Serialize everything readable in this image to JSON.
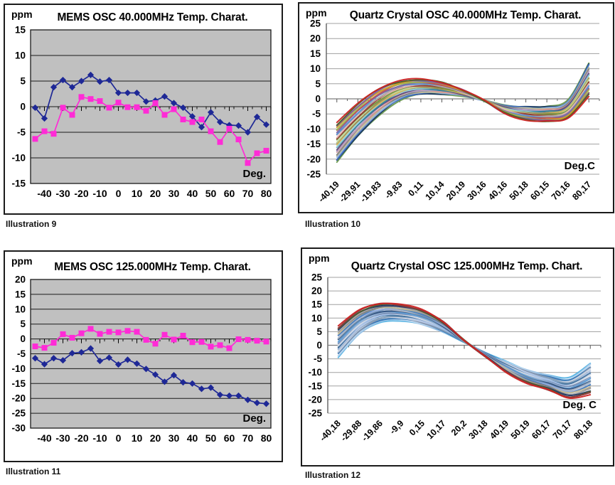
{
  "chart_data": [
    {
      "id": "mems-40",
      "type": "line",
      "title": "MEMS OSC 40.000MHz Temp. Charat.",
      "ylabel": "ppm",
      "xlabel": "Deg.",
      "caption": "Illustration 9",
      "ylim": [
        -15,
        15
      ],
      "ytick_step": 5,
      "grid": true,
      "plot_bg": "#c0c0c0",
      "x_start": -45,
      "x_step": 5,
      "x_tick_labels": [
        "-40",
        "-30",
        "-20",
        "-10",
        "0",
        "10",
        "20",
        "30",
        "40",
        "50",
        "60",
        "70",
        "80"
      ],
      "series": [
        {
          "name": "series-1",
          "marker": "diamond",
          "color": "#1e2896",
          "values": [
            -0.2,
            -2.3,
            3.8,
            5.2,
            3.8,
            5.0,
            6.2,
            4.9,
            5.2,
            2.7,
            2.7,
            2.7,
            1.0,
            1.2,
            2.0,
            0.7,
            -0.2,
            -1.9,
            -4.0,
            -1.1,
            -3.0,
            -3.6,
            -3.7,
            -5.0,
            -2.0,
            -3.5
          ]
        },
        {
          "name": "series-2",
          "marker": "square",
          "color": "#ff2bd6",
          "values": [
            -6.3,
            -4.8,
            -5.3,
            -0.2,
            -1.6,
            1.9,
            1.5,
            1.1,
            -0.2,
            0.8,
            -0.1,
            -0.1,
            -0.8,
            0.7,
            -1.6,
            -0.5,
            -2.5,
            -3.0,
            -2.5,
            -4.8,
            -6.9,
            -4.3,
            -6.4,
            -11.0,
            -9.1,
            -8.6
          ]
        }
      ]
    },
    {
      "id": "quartz-40",
      "type": "line",
      "title": "Quartz Crystal OSC 40.000MHz Temp. Charat.",
      "ylabel": "ppm",
      "xlabel": "Deg.C",
      "caption": "Illustration 10",
      "ylim": [
        -25,
        25
      ],
      "ytick_step": 5,
      "grid": true,
      "plot_bg": "#ffffff",
      "x_tick_labels": [
        "-40,19",
        "-29,91",
        "-19,83",
        "-9,83",
        "0,11",
        "10,14",
        "20,19",
        "30,16",
        "40,16",
        "50,18",
        "60,15",
        "70,16",
        "80,17"
      ],
      "num_curves": 26,
      "cross_index": 7,
      "curve_band": {
        "max": [
          -8,
          -1.5,
          3.5,
          6,
          6.5,
          5.5,
          3.5,
          0.5,
          -1.5,
          -2.5,
          -2.5,
          -0.5,
          12
        ],
        "min": [
          -21,
          -12.5,
          -5.5,
          -0.5,
          1.5,
          1.5,
          0.5,
          -1.5,
          -5.5,
          -7,
          -7.5,
          -6.5,
          1
        ]
      },
      "palette": [
        "#6a9a4e",
        "#17375e",
        "#4472c4",
        "#8eb4e3",
        "#c4bd96",
        "#7f7f7f",
        "#d99694",
        "#b2a2c7",
        "#604a7b",
        "#31859c",
        "#92cddc",
        "#d6b656",
        "#948a54",
        "#c3d69b",
        "#77933c",
        "#953735",
        "#e6b9b8",
        "#a6a6a6",
        "#558ed5",
        "#8064a2",
        "#c0504d",
        "#9bbb59",
        "#d19e28",
        "#7a5aa5",
        "#4f6228",
        "#cc2222"
      ]
    },
    {
      "id": "mems-125",
      "type": "line",
      "title": "MEMS OSC 125.000MHz Temp. Charat.",
      "ylabel": "ppm",
      "xlabel": "Deg.",
      "caption": "Illustration 11",
      "ylim": [
        -30,
        20
      ],
      "ytick_step": 5,
      "grid": true,
      "plot_bg": "#c0c0c0",
      "x_start": -45,
      "x_step": 5,
      "x_tick_labels": [
        "-40",
        "-30",
        "-20",
        "-10",
        "0",
        "10",
        "20",
        "30",
        "40",
        "50",
        "60",
        "70",
        "80"
      ],
      "series": [
        {
          "name": "series-1",
          "marker": "diamond",
          "color": "#1e2896",
          "values": [
            -6.5,
            -8.5,
            -6.5,
            -7.2,
            -4.8,
            -4.5,
            -3.2,
            -7.4,
            -6.3,
            -8.6,
            -7.0,
            -8.3,
            -10.1,
            -12.0,
            -14.4,
            -12.2,
            -14.6,
            -15.0,
            -16.8,
            -16.4,
            -18.8,
            -19.1,
            -19.1,
            -20.5,
            -21.5,
            -21.8
          ]
        },
        {
          "name": "series-2",
          "marker": "square",
          "color": "#ff2bd6",
          "values": [
            -2.5,
            -3.0,
            -1.3,
            1.6,
            0.4,
            1.9,
            3.4,
            1.7,
            2.4,
            2.2,
            2.7,
            2.4,
            -0.3,
            -1.6,
            1.4,
            -0.2,
            1.1,
            -1.1,
            -1.0,
            -2.6,
            -2.1,
            -3.1,
            -0.1,
            -0.3,
            -0.6,
            -0.9
          ]
        }
      ]
    },
    {
      "id": "quartz-125",
      "type": "line",
      "title": "Quartz Crystal OSC 125.000MHz Temp. Chart.",
      "ylabel": "ppm",
      "xlabel": "Deg. C",
      "caption": "Illustration 12",
      "ylim": [
        -25,
        25
      ],
      "ytick_step": 5,
      "grid": true,
      "plot_bg": "#ffffff",
      "x_tick_labels": [
        "-40,18",
        "-29,88",
        "-19,86",
        "-9,9",
        "0,15",
        "10,17",
        "20,2",
        "30,18",
        "40,19",
        "50,19",
        "60,17",
        "70,17",
        "80,18"
      ],
      "num_curves": 26,
      "cross_index": 6.3,
      "curve_band": {
        "max": [
          7,
          13,
          15.5,
          15,
          13,
          9,
          3,
          -2,
          -6,
          -9,
          -11,
          -12,
          -6.5
        ],
        "min": [
          -4.5,
          4,
          8.5,
          9,
          7.5,
          4.5,
          0,
          -5,
          -10,
          -14,
          -16.5,
          -19.5,
          -18
        ]
      },
      "palette": [
        "#5ab4e4",
        "#9dc3e6",
        "#bdd7ee",
        "#2e74b5",
        "#8496b0",
        "#c9d3e3",
        "#7f9db9",
        "#b4c7e7",
        "#41719c",
        "#a9c4eb",
        "#d6dce5",
        "#748cb4",
        "#94b3d6",
        "#5b9bd5",
        "#35527e",
        "#6688aa",
        "#aeb8c8",
        "#8faadc",
        "#4a7ebb",
        "#c8bd96",
        "#7f7f7f",
        "#a6a6a6",
        "#1f3864",
        "#4e5b2f",
        "#8b3a3a",
        "#cc2222"
      ]
    }
  ]
}
